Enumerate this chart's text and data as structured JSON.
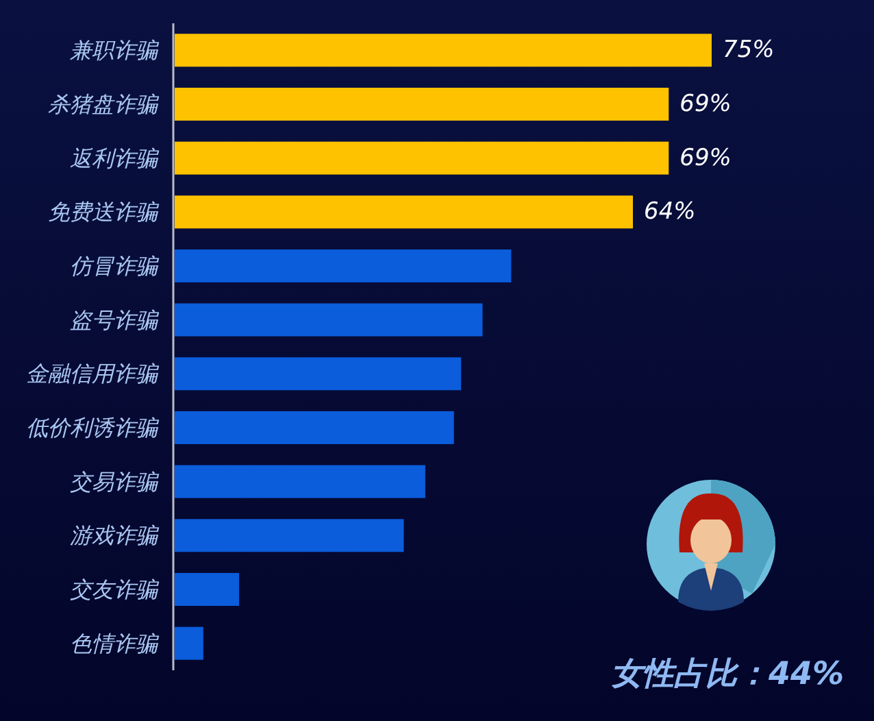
{
  "chart_data": {
    "type": "bar",
    "orientation": "horizontal",
    "categories": [
      "兼职诈骗",
      "杀猪盘诈骗",
      "返利诈骗",
      "免费送诈骗",
      "仿冒诈骗",
      "盗号诈骗",
      "金融信用诈骗",
      "低价利诱诈骗",
      "交易诈骗",
      "游戏诈骗",
      "交友诈骗",
      "色情诈骗"
    ],
    "values": [
      75,
      69,
      69,
      64,
      47,
      43,
      40,
      39,
      35,
      32,
      9,
      4
    ],
    "colors": [
      "#fec200",
      "#fec200",
      "#fec200",
      "#fec200",
      "#0b5ddc",
      "#0b5ddc",
      "#0b5ddc",
      "#0b5ddc",
      "#0b5ddc",
      "#0b5ddc",
      "#0b5ddc",
      "#0b5ddc"
    ],
    "value_labels": [
      "75%",
      "69%",
      "69%",
      "64%",
      null,
      null,
      null,
      null,
      null,
      null,
      null,
      null
    ],
    "annotations": [
      "女性占比：44%"
    ]
  }
}
